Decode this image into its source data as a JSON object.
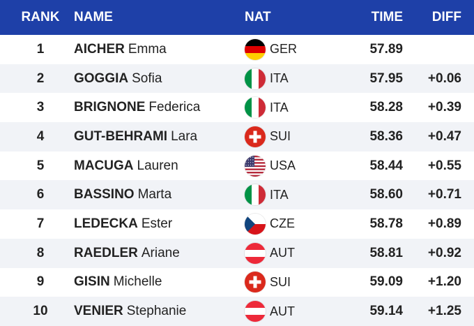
{
  "header": {
    "rank": "RANK",
    "name": "NAME",
    "nat": "NAT",
    "time": "TIME",
    "diff": "DIFF"
  },
  "colors": {
    "header_bg": "#1e40a8",
    "row_alt_bg": "#f1f3f7"
  },
  "rows": [
    {
      "rank": "1",
      "surname": "AICHER",
      "given": "Emma",
      "nat": "GER",
      "flag": "germany-flag-icon",
      "time": "57.89",
      "diff": ""
    },
    {
      "rank": "2",
      "surname": "GOGGIA",
      "given": "Sofia",
      "nat": "ITA",
      "flag": "italy-flag-icon",
      "time": "57.95",
      "diff": "+0.06"
    },
    {
      "rank": "3",
      "surname": "BRIGNONE",
      "given": "Federica",
      "nat": "ITA",
      "flag": "italy-flag-icon",
      "time": "58.28",
      "diff": "+0.39"
    },
    {
      "rank": "4",
      "surname": "GUT-BEHRAMI",
      "given": "Lara",
      "nat": "SUI",
      "flag": "switzerland-flag-icon",
      "time": "58.36",
      "diff": "+0.47"
    },
    {
      "rank": "5",
      "surname": "MACUGA",
      "given": "Lauren",
      "nat": "USA",
      "flag": "usa-flag-icon",
      "time": "58.44",
      "diff": "+0.55"
    },
    {
      "rank": "6",
      "surname": "BASSINO",
      "given": "Marta",
      "nat": "ITA",
      "flag": "italy-flag-icon",
      "time": "58.60",
      "diff": "+0.71"
    },
    {
      "rank": "7",
      "surname": "LEDECKA",
      "given": "Ester",
      "nat": "CZE",
      "flag": "czech-flag-icon",
      "time": "58.78",
      "diff": "+0.89"
    },
    {
      "rank": "8",
      "surname": "RAEDLER",
      "given": "Ariane",
      "nat": "AUT",
      "flag": "austria-flag-icon",
      "time": "58.81",
      "diff": "+0.92"
    },
    {
      "rank": "9",
      "surname": "GISIN",
      "given": "Michelle",
      "nat": "SUI",
      "flag": "switzerland-flag-icon",
      "time": "59.09",
      "diff": "+1.20"
    },
    {
      "rank": "10",
      "surname": "VENIER",
      "given": "Stephanie",
      "nat": "AUT",
      "flag": "austria-flag-icon",
      "time": "59.14",
      "diff": "+1.25"
    }
  ]
}
